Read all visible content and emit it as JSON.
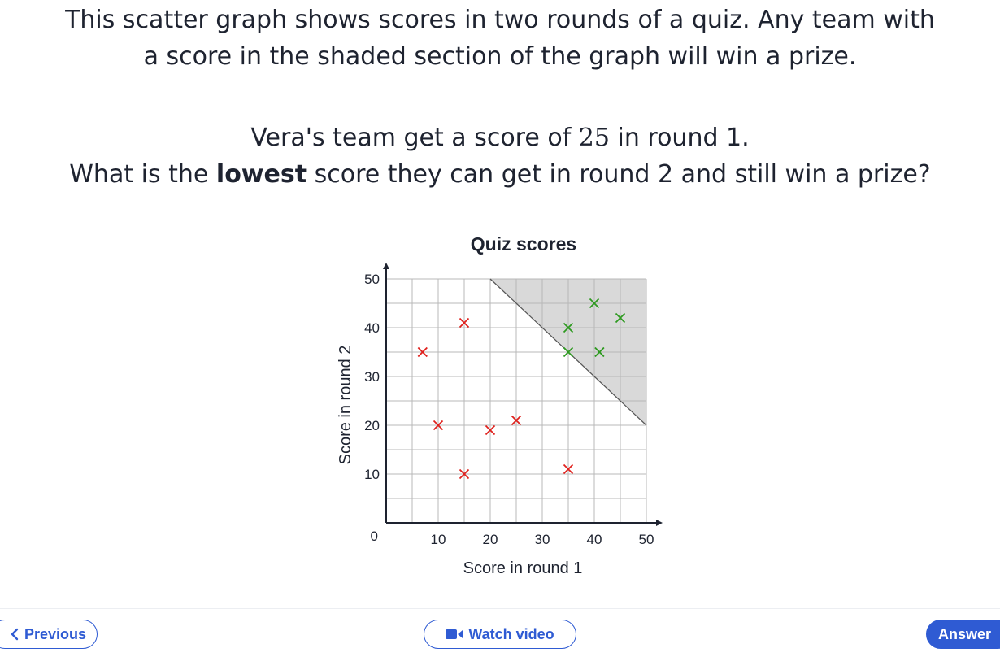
{
  "question": {
    "line1": "This scatter graph shows scores in two rounds of a quiz. Any team with",
    "line2": "a score in the shaded section of the graph will win a prize.",
    "line3_pre": "Vera's team get a score of ",
    "line3_num": "25",
    "line3_post": " in round 1.",
    "line4_pre": "What is the ",
    "line4_bold": "lowest",
    "line4_post": " score they can get in round 2 and still win a prize?"
  },
  "chart_data": {
    "type": "scatter",
    "title": "Quiz scores",
    "xlabel": "Score in round 1",
    "ylabel": "Score in round 2",
    "xlim": [
      0,
      50
    ],
    "ylim": [
      0,
      50
    ],
    "x_ticks": [
      10,
      20,
      30,
      40,
      50
    ],
    "y_ticks": [
      10,
      20,
      30,
      40,
      50
    ],
    "origin_label": "0",
    "grid": true,
    "grid_step": 5,
    "shaded_region": [
      [
        20,
        50
      ],
      [
        50,
        50
      ],
      [
        50,
        20
      ]
    ],
    "series": [
      {
        "color": "#e0211d",
        "points": [
          [
            7,
            35
          ],
          [
            10,
            20
          ],
          [
            15,
            41
          ],
          [
            15,
            10
          ],
          [
            20,
            19
          ],
          [
            25,
            21
          ],
          [
            35,
            11
          ]
        ]
      },
      {
        "color": "#2d9a1f",
        "points": [
          [
            35,
            40
          ],
          [
            35,
            35
          ],
          [
            40,
            45
          ],
          [
            41,
            35
          ],
          [
            45,
            42
          ]
        ]
      }
    ],
    "colors": {
      "shade": "#d9d9d9",
      "grid": "#b8b8b8",
      "axis": "#1e2330"
    }
  },
  "footer": {
    "previous_label": "Previous",
    "watch_label": "Watch video",
    "answer_label": "Answer",
    "accent": "#2f5bd3"
  },
  "icons": {
    "previous": "chevron-left-icon",
    "video": "video-camera-icon"
  }
}
